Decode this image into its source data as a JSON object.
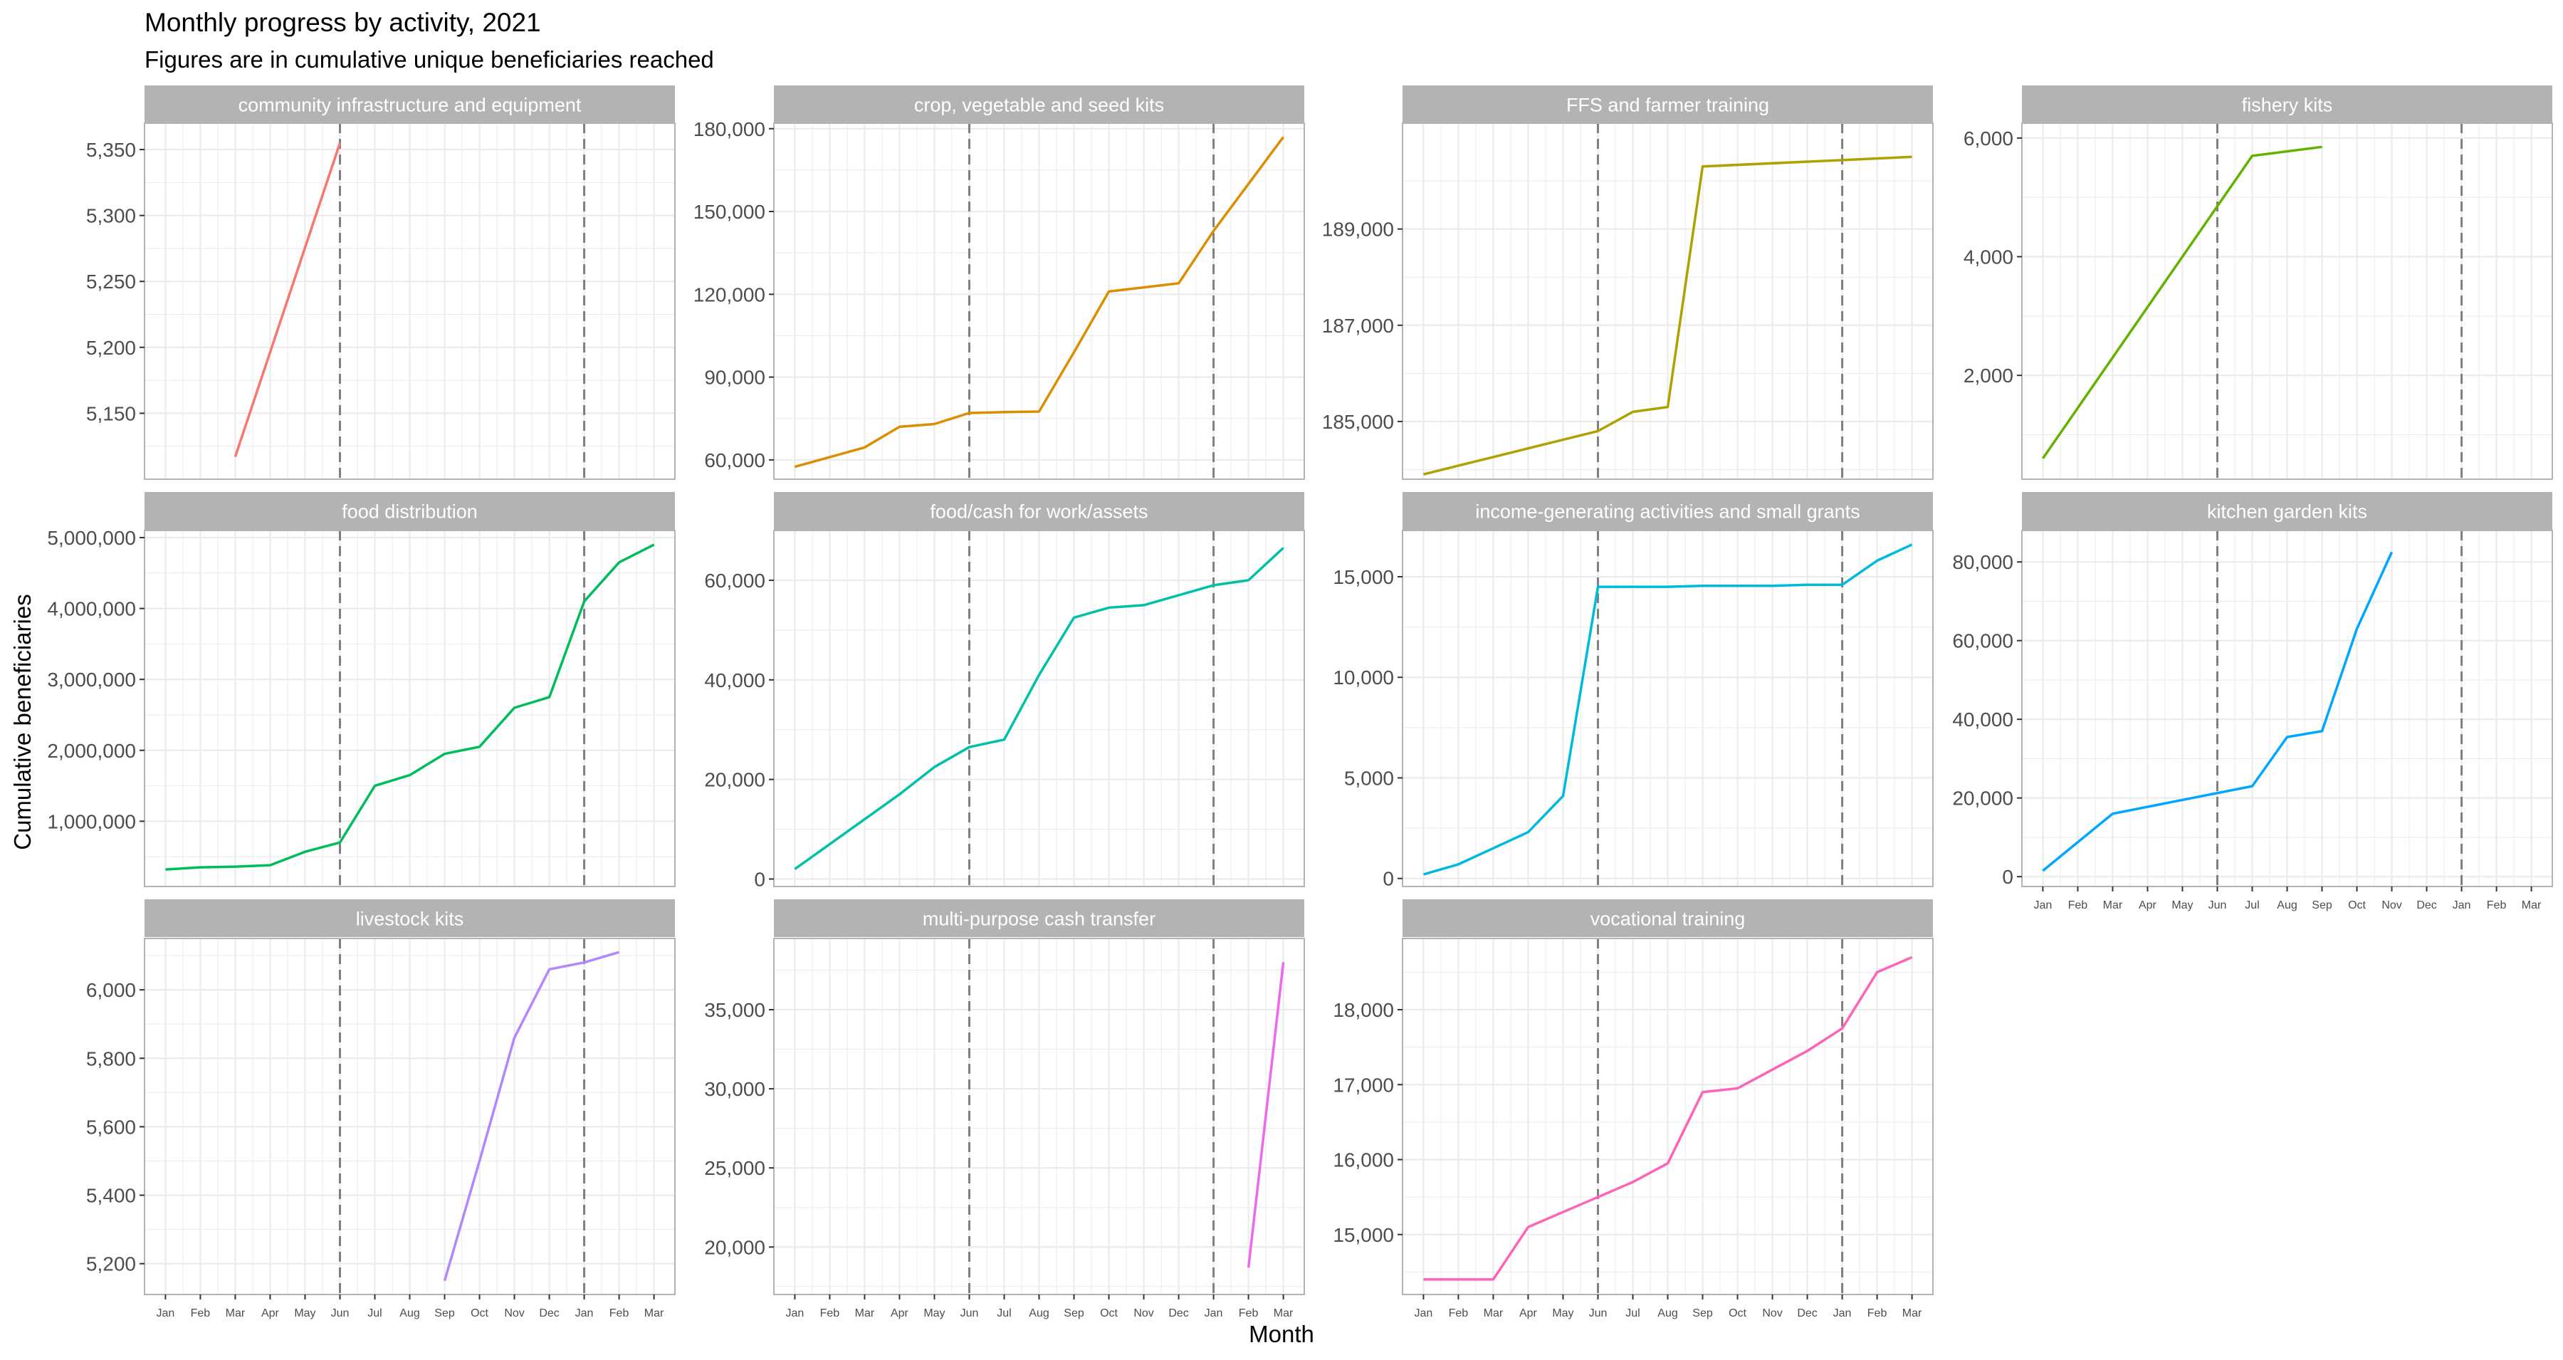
{
  "title": "Monthly progress by activity, 2021",
  "subtitle": "Figures are in cumulative unique beneficiaries reached",
  "xlabel": "Month",
  "ylabel": "Cumulative beneficiaries",
  "colors": {
    "strip_bg": "#b3b3b3",
    "strip_text": "#ffffff",
    "grid": "#ebebeb",
    "panel_border": "#b3b3b3",
    "vline": "#7f7f7f",
    "tick_text": "#4d4d4d"
  },
  "chart_data": {
    "type": "line",
    "facet_layout": "4 columns x 3 rows",
    "months": [
      "Jan",
      "Feb",
      "Mar",
      "Apr",
      "May",
      "Jun",
      "Jul",
      "Aug",
      "Sep",
      "Oct",
      "Nov",
      "Dec",
      "Jan",
      "Feb",
      "Mar"
    ],
    "vlines_at": [
      "Jun",
      "Jan"
    ],
    "grid": true,
    "panels": [
      {
        "name": "community infrastructure and equipment",
        "color": "#F8766D",
        "ylim": [
          5100,
          5370
        ],
        "yticks": [
          5150,
          5200,
          5250,
          5300,
          5350
        ],
        "ytick_labels": [
          "5,150",
          "5,200",
          "5,250",
          "5,300",
          "5,350"
        ],
        "x": [
          3,
          6
        ],
        "values": [
          5117,
          5355
        ]
      },
      {
        "name": "crop, vegetable and seed kits",
        "color": "#DB8E00",
        "ylim": [
          53000,
          182000
        ],
        "yticks": [
          60000,
          90000,
          120000,
          150000,
          180000
        ],
        "ytick_labels": [
          "60,000",
          "90,000",
          "120,000",
          "150,000",
          "180,000"
        ],
        "x": [
          1,
          2,
          3,
          4,
          5,
          6,
          7,
          8,
          9,
          10,
          11,
          12,
          13,
          14,
          15
        ],
        "values": [
          57500,
          61000,
          64500,
          72000,
          73000,
          77000,
          77300,
          77500,
          99000,
          121000,
          122500,
          124000,
          143000,
          160000,
          177000
        ]
      },
      {
        "name": "FFS and farmer training",
        "color": "#AEA200",
        "ylim": [
          183800,
          191200
        ],
        "yticks": [
          185000,
          187000,
          189000
        ],
        "ytick_labels": [
          "185,000",
          "187,000",
          "189,000"
        ],
        "x": [
          1,
          6,
          7,
          8,
          9,
          15
        ],
        "values": [
          183900,
          184800,
          185200,
          185300,
          190300,
          190500
        ]
      },
      {
        "name": "fishery kits",
        "color": "#64B200",
        "ylim": [
          250,
          6250
        ],
        "yticks": [
          2000,
          4000,
          6000
        ],
        "ytick_labels": [
          "2,000",
          "4,000",
          "6,000"
        ],
        "x": [
          1,
          7,
          9
        ],
        "values": [
          600,
          5700,
          5850
        ]
      },
      {
        "name": "food distribution",
        "color": "#00BD5C",
        "ylim": [
          80000,
          5100000
        ],
        "yticks": [
          1000000,
          2000000,
          3000000,
          4000000,
          5000000
        ],
        "ytick_labels": [
          "1,000,000",
          "2,000,000",
          "3,000,000",
          "4,000,000",
          "5,000,000"
        ],
        "x": [
          1,
          2,
          3,
          4,
          5,
          6,
          7,
          8,
          9,
          10,
          11,
          12,
          13,
          14,
          15
        ],
        "values": [
          320000,
          350000,
          360000,
          380000,
          570000,
          700000,
          1500000,
          1650000,
          1950000,
          2050000,
          2600000,
          2750000,
          4100000,
          4650000,
          4900000
        ]
      },
      {
        "name": "food/cash for work/assets",
        "color": "#00C1A7",
        "ylim": [
          -1500,
          70000
        ],
        "yticks": [
          0,
          20000,
          40000,
          60000
        ],
        "ytick_labels": [
          "0",
          "20,000",
          "40,000",
          "60,000"
        ],
        "x": [
          1,
          2,
          3,
          4,
          5,
          6,
          7,
          8,
          9,
          10,
          11,
          12,
          13,
          14,
          15
        ],
        "values": [
          2000,
          7000,
          12000,
          17000,
          22500,
          26500,
          28000,
          41000,
          52500,
          54500,
          55000,
          57000,
          59000,
          60000,
          66500
        ]
      },
      {
        "name": "income-generating activities and small grants",
        "color": "#00BADE",
        "ylim": [
          -400,
          17300
        ],
        "yticks": [
          0,
          5000,
          10000,
          15000
        ],
        "ytick_labels": [
          "0",
          "5,000",
          "10,000",
          "15,000"
        ],
        "x": [
          1,
          2,
          3,
          4,
          5,
          6,
          7,
          8,
          9,
          10,
          11,
          12,
          13,
          14,
          15
        ],
        "values": [
          200,
          700,
          1500,
          2300,
          4100,
          14500,
          14500,
          14500,
          14550,
          14550,
          14550,
          14600,
          14600,
          15800,
          16600
        ]
      },
      {
        "name": "kitchen garden kits",
        "color": "#00A6FF",
        "ylim": [
          -2500,
          88000
        ],
        "yticks": [
          0,
          20000,
          40000,
          60000,
          80000
        ],
        "ytick_labels": [
          "0",
          "20,000",
          "40,000",
          "60,000",
          "80,000"
        ],
        "x": [
          1,
          3,
          7,
          8,
          9,
          10,
          11
        ],
        "values": [
          1500,
          16000,
          23000,
          35500,
          37000,
          63000,
          82500
        ]
      },
      {
        "name": "livestock kits",
        "color": "#B385FF",
        "ylim": [
          5110,
          6150
        ],
        "yticks": [
          5200,
          5400,
          5600,
          5800,
          6000
        ],
        "ytick_labels": [
          "5,200",
          "5,400",
          "5,600",
          "5,800",
          "6,000"
        ],
        "x": [
          9,
          10,
          11,
          12,
          13,
          14
        ],
        "values": [
          5150,
          5500,
          5860,
          6060,
          6080,
          6110
        ]
      },
      {
        "name": "multi-purpose cash transfer",
        "color": "#EF67EB",
        "ylim": [
          17000,
          39500
        ],
        "yticks": [
          20000,
          25000,
          30000,
          35000
        ],
        "ytick_labels": [
          "20,000",
          "25,000",
          "30,000",
          "35,000"
        ],
        "x": [
          14,
          15
        ],
        "values": [
          18700,
          38000
        ]
      },
      {
        "name": "vocational training",
        "color": "#FF63B6",
        "ylim": [
          14200,
          18950
        ],
        "yticks": [
          15000,
          16000,
          17000,
          18000
        ],
        "ytick_labels": [
          "15,000",
          "16,000",
          "17,000",
          "18,000"
        ],
        "x": [
          1,
          2,
          3,
          4,
          5,
          6,
          7,
          8,
          9,
          10,
          11,
          12,
          13,
          14,
          15
        ],
        "values": [
          14400,
          14400,
          14400,
          15100,
          15300,
          15500,
          15700,
          15950,
          16900,
          16950,
          17200,
          17450,
          17750,
          18500,
          18700
        ]
      }
    ]
  }
}
